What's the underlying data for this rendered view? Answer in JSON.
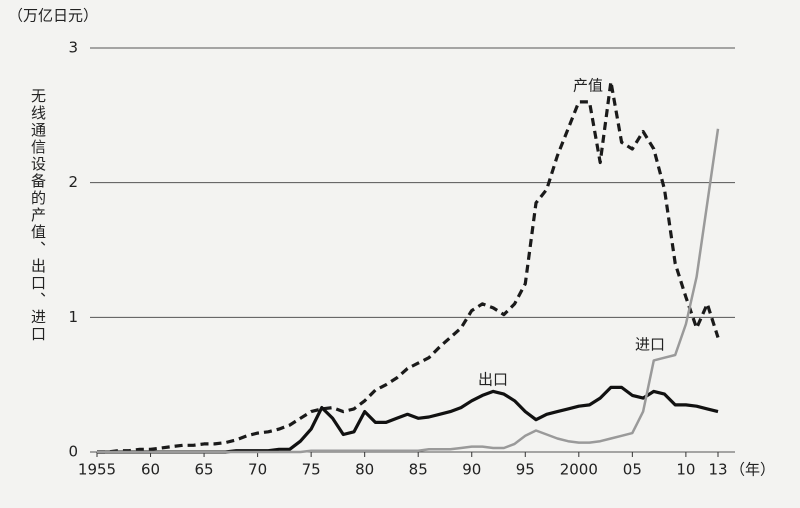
{
  "chart_data": {
    "type": "line",
    "y_unit": "（万亿日元）",
    "ylabel": "无线通信设备的产值、出口、进口",
    "x_unit": "（年）",
    "x": [
      1955,
      1956,
      1957,
      1958,
      1959,
      1960,
      1961,
      1962,
      1963,
      1964,
      1965,
      1966,
      1967,
      1968,
      1969,
      1970,
      1971,
      1972,
      1973,
      1974,
      1975,
      1976,
      1977,
      1978,
      1979,
      1980,
      1981,
      1982,
      1983,
      1984,
      1985,
      1986,
      1987,
      1988,
      1989,
      1990,
      1991,
      1992,
      1993,
      1994,
      1995,
      1996,
      1997,
      1998,
      1999,
      2000,
      2001,
      2002,
      2003,
      2004,
      2005,
      2006,
      2007,
      2008,
      2009,
      2010,
      2011,
      2012,
      2013
    ],
    "series": [
      {
        "name": "产值",
        "color": "#1a1a1a",
        "dash": true,
        "values": [
          0,
          0,
          0.01,
          0.01,
          0.02,
          0.02,
          0.03,
          0.04,
          0.05,
          0.05,
          0.06,
          0.06,
          0.07,
          0.09,
          0.12,
          0.14,
          0.15,
          0.17,
          0.2,
          0.25,
          0.3,
          0.32,
          0.33,
          0.3,
          0.32,
          0.38,
          0.46,
          0.5,
          0.55,
          0.62,
          0.66,
          0.7,
          0.78,
          0.85,
          0.92,
          1.05,
          1.1,
          1.07,
          1.02,
          1.1,
          1.25,
          1.85,
          1.95,
          2.2,
          2.4,
          2.6,
          2.6,
          2.15,
          2.75,
          2.3,
          2.25,
          2.38,
          2.25,
          1.95,
          1.4,
          1.15,
          0.92,
          1.1,
          0.85
        ]
      },
      {
        "name": "出口",
        "color": "#111111",
        "dash": false,
        "values": [
          0,
          0,
          0,
          0,
          0,
          0,
          0,
          0,
          0,
          0,
          0,
          0,
          0,
          0.01,
          0.01,
          0.01,
          0.01,
          0.02,
          0.02,
          0.08,
          0.17,
          0.33,
          0.25,
          0.13,
          0.15,
          0.3,
          0.22,
          0.22,
          0.25,
          0.28,
          0.25,
          0.26,
          0.28,
          0.3,
          0.33,
          0.38,
          0.42,
          0.45,
          0.43,
          0.38,
          0.3,
          0.24,
          0.28,
          0.3,
          0.32,
          0.34,
          0.35,
          0.4,
          0.48,
          0.48,
          0.42,
          0.4,
          0.45,
          0.43,
          0.35,
          0.35,
          0.34,
          0.32,
          0.3
        ]
      },
      {
        "name": "进口",
        "color": "#9a9a9a",
        "dash": false,
        "values": [
          0,
          0,
          0,
          0,
          0,
          0,
          0,
          0,
          0,
          0,
          0,
          0,
          0,
          0,
          0,
          0,
          0,
          0,
          0,
          0,
          0.01,
          0.01,
          0.01,
          0.01,
          0.01,
          0.01,
          0.01,
          0.01,
          0.01,
          0.01,
          0.01,
          0.02,
          0.02,
          0.02,
          0.03,
          0.04,
          0.04,
          0.03,
          0.03,
          0.06,
          0.12,
          0.16,
          0.13,
          0.1,
          0.08,
          0.07,
          0.07,
          0.08,
          0.1,
          0.12,
          0.14,
          0.3,
          0.68,
          0.7,
          0.72,
          0.95,
          1.3,
          1.85,
          2.4
        ]
      }
    ],
    "xlim": [
      1955,
      2013
    ],
    "xticks": [
      {
        "value": 1955,
        "label": "1955"
      },
      {
        "value": 1960,
        "label": "60"
      },
      {
        "value": 1965,
        "label": "65"
      },
      {
        "value": 1970,
        "label": "70"
      },
      {
        "value": 1975,
        "label": "75"
      },
      {
        "value": 1980,
        "label": "80"
      },
      {
        "value": 1985,
        "label": "85"
      },
      {
        "value": 1990,
        "label": "90"
      },
      {
        "value": 1995,
        "label": "95"
      },
      2000,
      {
        "value": 2005,
        "label": "05"
      },
      {
        "value": 2010,
        "label": "10"
      },
      {
        "value": 2013,
        "label": "13"
      }
    ],
    "ylim": [
      0,
      3
    ],
    "yticks": [
      0,
      1,
      2,
      3
    ],
    "grid": true
  }
}
